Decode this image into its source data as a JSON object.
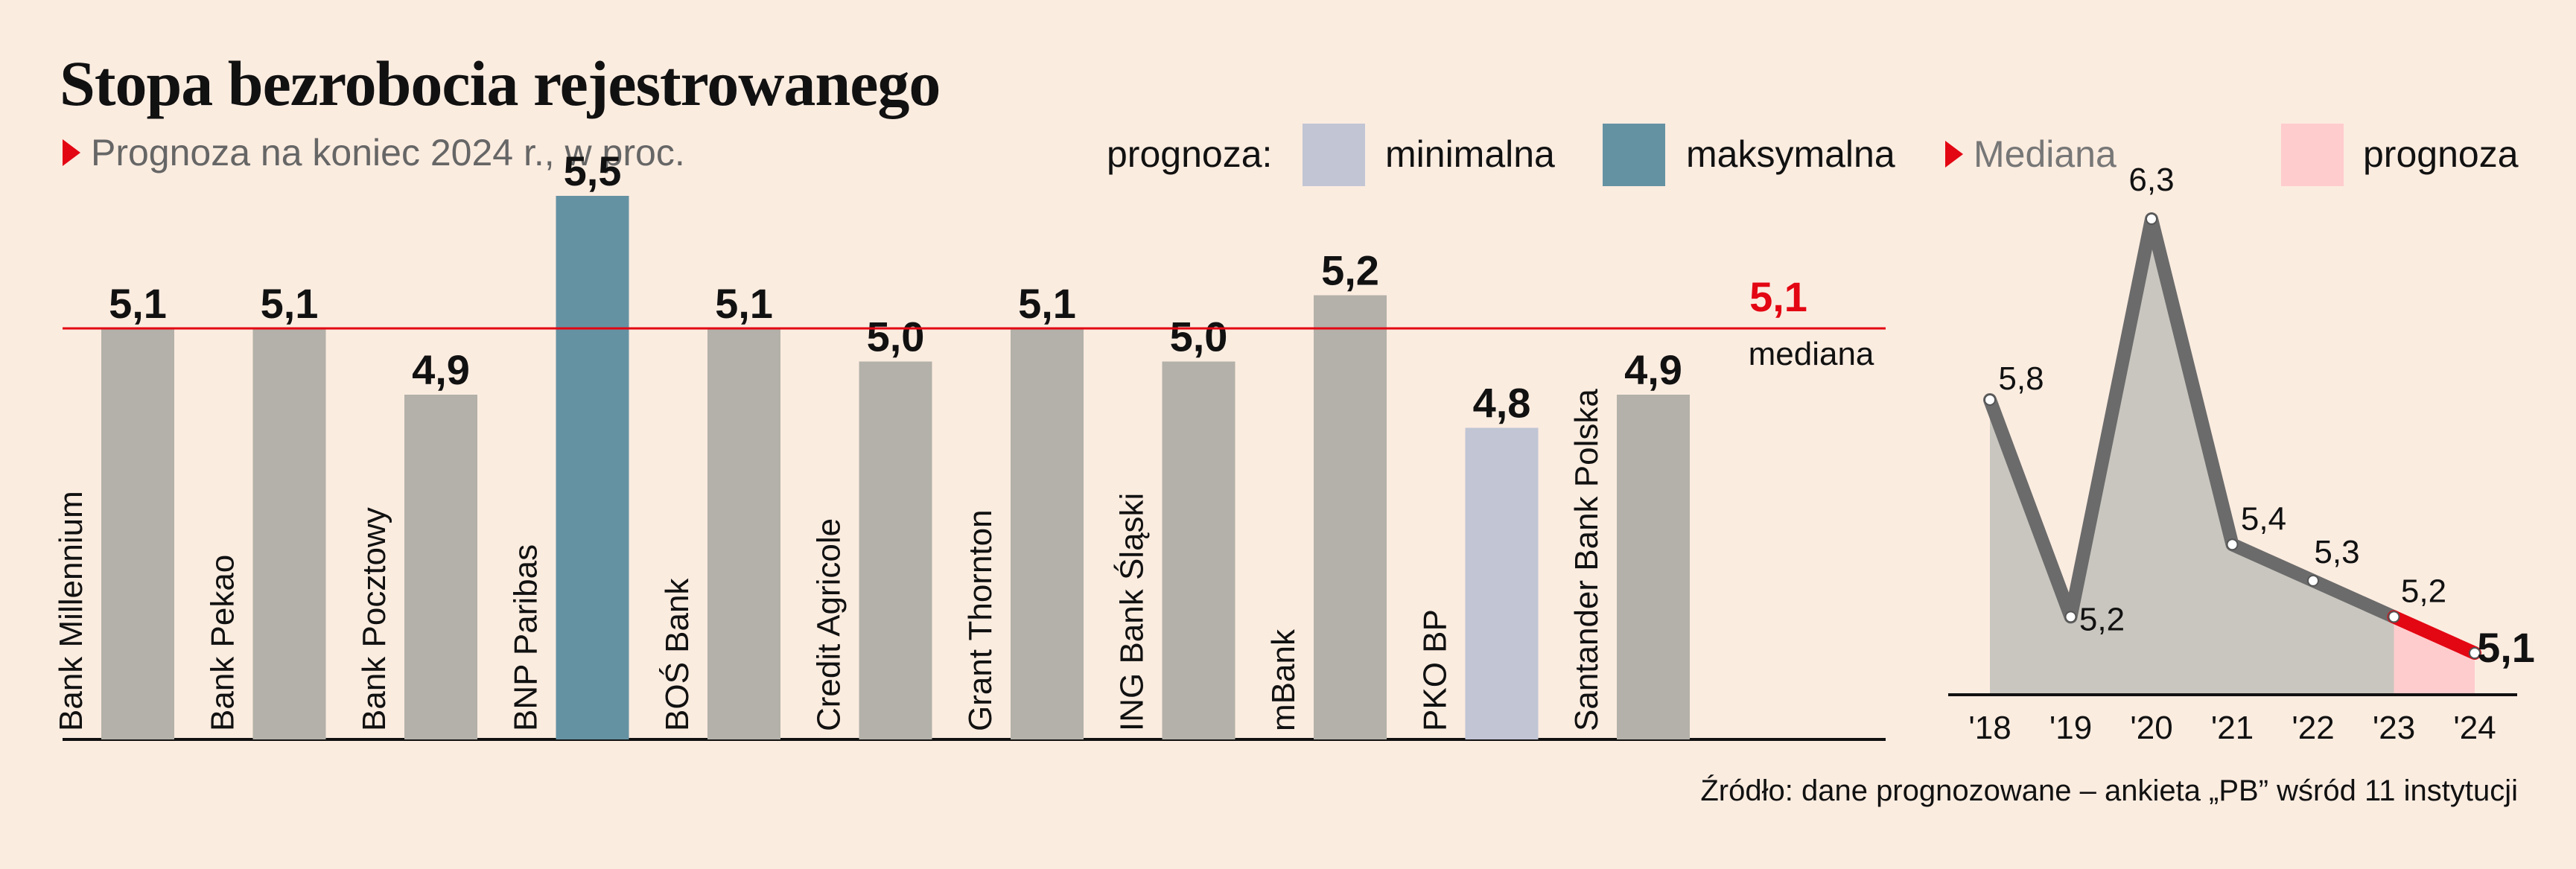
{
  "title": "Stopa bezrobocia rejestrowanego",
  "subtitle": "Prognoza na koniec 2024 r., w proc.",
  "legend": {
    "prefix": "prognoza:",
    "min_label": "minimalna",
    "max_label": "maksymalna",
    "median_label": "Mediana",
    "forecast_label": "prognoza"
  },
  "colors": {
    "background": "#fbece0",
    "bar_default": "#b3b1a9",
    "bar_max": "#6592a3",
    "bar_min": "#c1c5d4",
    "median_line": "#e30613",
    "forecast_fill": "#ffcccd",
    "line": "#6b6b6b",
    "area": "#c9c6bf"
  },
  "source": "Źródło: dane prognozowane – ankieta „PB” wśród 11 instytucji",
  "chart_data": [
    {
      "type": "bar",
      "categories": [
        "Bank Millennium",
        "Bank Pekao",
        "Bank Pocztowy",
        "BNP Paribas",
        "BOŚ Bank",
        "Credit Agricole",
        "Grant Thornton",
        "ING Bank Śląski",
        "mBank",
        "PKO BP",
        "Santander Bank Polska"
      ],
      "values": [
        5.1,
        5.1,
        4.9,
        5.5,
        5.1,
        5.0,
        5.1,
        5.0,
        5.2,
        4.8,
        4.9
      ],
      "value_labels": [
        "5,1",
        "5,1",
        "4,9",
        "5,5",
        "5,1",
        "5,0",
        "5,1",
        "5,0",
        "5,2",
        "4,8",
        "4,9"
      ],
      "highlight": {
        "max_index": 3,
        "min_index": 9
      },
      "median": {
        "value": 5.1,
        "label": "5,1",
        "caption": "mediana"
      }
    },
    {
      "type": "line",
      "x": [
        "'18",
        "'19",
        "'20",
        "'21",
        "'22",
        "'23",
        "'24"
      ],
      "values": [
        5.8,
        5.2,
        6.3,
        5.4,
        5.3,
        5.2,
        5.1
      ],
      "value_labels": [
        "5,8",
        "5,2",
        "6,3",
        "5,4",
        "5,3",
        "5,2",
        "5,1"
      ],
      "forecast_from_index": 5
    }
  ]
}
